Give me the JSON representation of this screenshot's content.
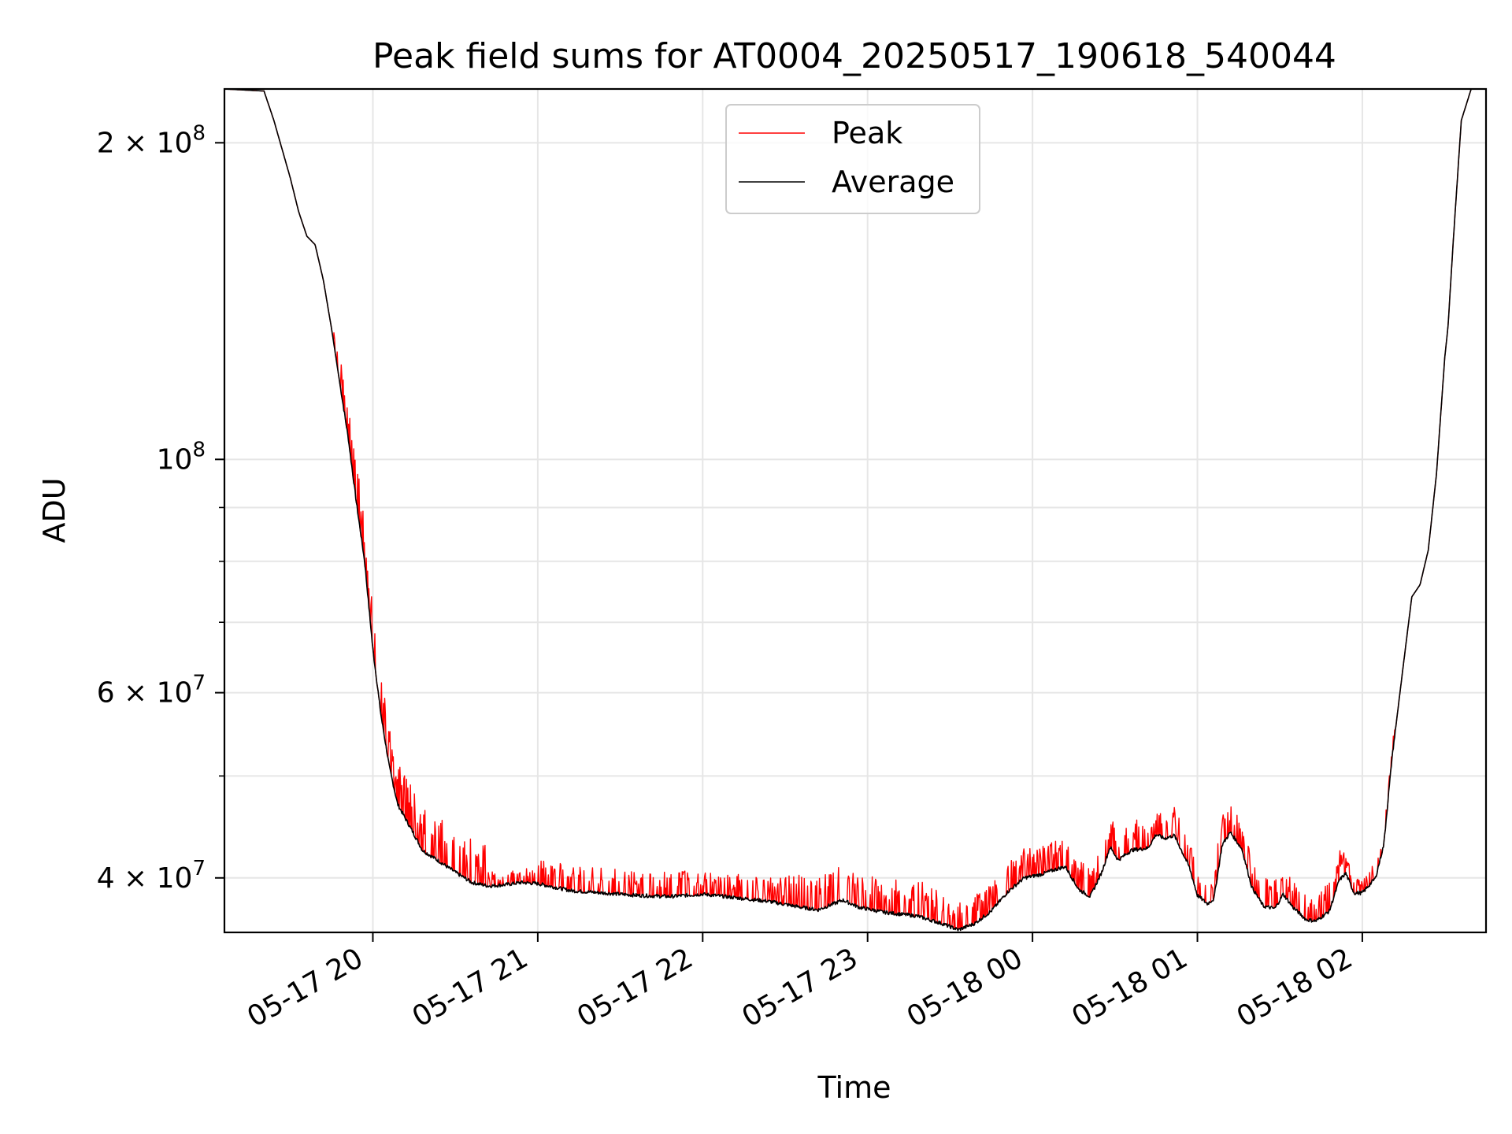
{
  "chart_data": {
    "type": "line",
    "title": "Peak field sums for AT0004_20250517_190618_540044",
    "xlabel": "Time",
    "ylabel": "ADU",
    "yscale": "log",
    "ylim": [
      35500000,
      225000000
    ],
    "xlim_hours": [
      -0.9,
      6.75
    ],
    "grid": true,
    "legend_position": "upper center",
    "x_ticks": [
      {
        "label": "05-17 20",
        "hour": 0
      },
      {
        "label": "05-17 21",
        "hour": 1
      },
      {
        "label": "05-17 22",
        "hour": 2
      },
      {
        "label": "05-17 23",
        "hour": 3
      },
      {
        "label": "05-18 00",
        "hour": 4
      },
      {
        "label": "05-18 01",
        "hour": 5
      },
      {
        "label": "05-18 02",
        "hour": 6
      }
    ],
    "y_major_ticks": [
      {
        "value": 40000000,
        "mantissa": "4",
        "exponent": "7"
      },
      {
        "value": 60000000,
        "mantissa": "6",
        "exponent": "7"
      },
      {
        "value": 100000000,
        "mantissa": "",
        "exponent": "8"
      },
      {
        "value": 200000000,
        "mantissa": "2",
        "exponent": "8"
      }
    ],
    "y_minor_gridlines": [
      50000000,
      70000000,
      80000000,
      90000000
    ],
    "tick_text": {
      "times": "×",
      "base": "10"
    },
    "series": [
      {
        "name": "Peak",
        "color": "#ff0000",
        "peak_offsets": [
          [
            -0.2,
            0.7,
            0.09
          ],
          [
            1.0,
            2.5,
            0.05
          ],
          [
            2.5,
            3.5,
            0.07
          ],
          [
            3.5,
            5.0,
            0.06
          ],
          [
            5.0,
            5.9,
            0.06
          ]
        ]
      },
      {
        "name": "Average",
        "color": "#000000",
        "points": [
          [
            -0.9,
            225000000
          ],
          [
            -0.66,
            224000000
          ],
          [
            -0.6,
            210000000
          ],
          [
            -0.5,
            185000000
          ],
          [
            -0.45,
            172000000
          ],
          [
            -0.4,
            163000000
          ],
          [
            -0.35,
            160000000
          ],
          [
            -0.3,
            148000000
          ],
          [
            -0.25,
            133000000
          ],
          [
            -0.2,
            118000000
          ],
          [
            -0.15,
            105000000
          ],
          [
            -0.1,
            91000000
          ],
          [
            -0.05,
            80000000
          ],
          [
            0.0,
            66000000
          ],
          [
            0.05,
            57000000
          ],
          [
            0.1,
            51000000
          ],
          [
            0.15,
            47000000
          ],
          [
            0.25,
            44000000
          ],
          [
            0.3,
            42500000
          ],
          [
            0.4,
            41500000
          ],
          [
            0.5,
            40500000
          ],
          [
            0.6,
            39600000
          ],
          [
            0.7,
            39300000
          ],
          [
            0.8,
            39400000
          ],
          [
            0.9,
            39600000
          ],
          [
            1.0,
            39500000
          ],
          [
            1.2,
            38900000
          ],
          [
            1.4,
            38700000
          ],
          [
            1.6,
            38500000
          ],
          [
            1.8,
            38400000
          ],
          [
            2.0,
            38600000
          ],
          [
            2.2,
            38300000
          ],
          [
            2.4,
            38000000
          ],
          [
            2.6,
            37500000
          ],
          [
            2.7,
            37300000
          ],
          [
            2.85,
            38100000
          ],
          [
            2.95,
            37500000
          ],
          [
            3.1,
            37100000
          ],
          [
            3.3,
            36800000
          ],
          [
            3.45,
            36200000
          ],
          [
            3.55,
            35700000
          ],
          [
            3.65,
            36200000
          ],
          [
            3.75,
            37200000
          ],
          [
            3.85,
            38800000
          ],
          [
            3.95,
            40000000
          ],
          [
            4.05,
            40300000
          ],
          [
            4.15,
            40800000
          ],
          [
            4.2,
            41000000
          ],
          [
            4.28,
            39000000
          ],
          [
            4.35,
            38400000
          ],
          [
            4.42,
            40500000
          ],
          [
            4.47,
            42800000
          ],
          [
            4.52,
            41600000
          ],
          [
            4.6,
            42500000
          ],
          [
            4.7,
            42700000
          ],
          [
            4.75,
            44000000
          ],
          [
            4.8,
            43600000
          ],
          [
            4.86,
            43900000
          ],
          [
            4.95,
            41000000
          ],
          [
            5.0,
            38500000
          ],
          [
            5.06,
            37800000
          ],
          [
            5.1,
            38200000
          ],
          [
            5.15,
            43000000
          ],
          [
            5.2,
            44200000
          ],
          [
            5.27,
            42600000
          ],
          [
            5.33,
            39200000
          ],
          [
            5.4,
            37600000
          ],
          [
            5.47,
            37400000
          ],
          [
            5.52,
            38600000
          ],
          [
            5.58,
            37500000
          ],
          [
            5.66,
            36500000
          ],
          [
            5.72,
            36400000
          ],
          [
            5.8,
            37200000
          ],
          [
            5.86,
            39800000
          ],
          [
            5.9,
            40400000
          ],
          [
            5.95,
            38700000
          ],
          [
            6.0,
            38700000
          ],
          [
            6.08,
            40000000
          ],
          [
            6.13,
            43000000
          ],
          [
            6.18,
            52000000
          ],
          [
            6.25,
            64000000
          ],
          [
            6.3,
            74000000
          ],
          [
            6.35,
            76000000
          ],
          [
            6.4,
            82000000
          ],
          [
            6.45,
            97000000
          ],
          [
            6.5,
            125000000
          ],
          [
            6.52,
            134000000
          ],
          [
            6.55,
            160000000
          ],
          [
            6.6,
            210000000
          ],
          [
            6.66,
            225000000
          ],
          [
            6.75,
            225000000
          ]
        ]
      }
    ]
  }
}
